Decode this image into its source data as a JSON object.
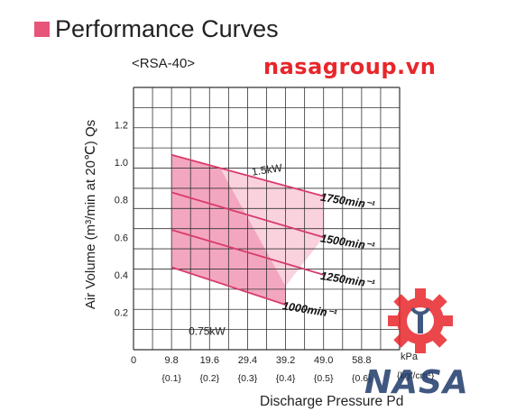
{
  "header": {
    "title": "Performance Curves"
  },
  "model": "<RSA-40>",
  "watermark": "nasagroup.vn",
  "logo_text": "NASA",
  "colors": {
    "accent": "#e8557a",
    "curve": "#d83c6a",
    "region_dark": "#f3a6bf",
    "region_light": "#f9d2de",
    "watermark": "#e8262b",
    "logo": "#1f3a6b",
    "gear": "#e8262b"
  },
  "chart_data": {
    "type": "line",
    "title": "",
    "xlabel": "Discharge Pressure Pd",
    "ylabel": "Air Volume (m³/min at 20℃) Qs",
    "x_unit": "kPa",
    "x_sub_unit": "{kgf/cm²}",
    "xlim": [
      0,
      68.6
    ],
    "ylim": [
      0,
      1.4
    ],
    "grid": true,
    "x_ticks": [
      "0",
      "9.8",
      "19.6",
      "29.4",
      "39.2",
      "49.0",
      "58.8"
    ],
    "x_tick_values": [
      0,
      9.8,
      19.6,
      29.4,
      39.2,
      49.0,
      58.8
    ],
    "x_sub_ticks": [
      "{0.1}",
      "{0.2}",
      "{0.3}",
      "{0.4}",
      "{0.5}",
      "{0.6}"
    ],
    "x_sub_tick_values": [
      9.8,
      19.6,
      29.4,
      39.2,
      49.0,
      58.8
    ],
    "y_ticks": [
      "0.2",
      "0.4",
      "0.6",
      "0.8",
      "1.0",
      "1.2"
    ],
    "y_tick_values": [
      0.2,
      0.4,
      0.6,
      0.8,
      1.0,
      1.2
    ],
    "series": [
      {
        "name": "1750min⁻¹",
        "x": [
          9.8,
          49.0
        ],
        "y": [
          1.04,
          0.82
        ]
      },
      {
        "name": "1500min⁻¹",
        "x": [
          9.8,
          49.0
        ],
        "y": [
          0.84,
          0.6
        ]
      },
      {
        "name": "1250min⁻¹",
        "x": [
          9.8,
          49.0
        ],
        "y": [
          0.64,
          0.4
        ]
      },
      {
        "name": "1000min⁻¹",
        "x": [
          9.8,
          39.2
        ],
        "y": [
          0.44,
          0.24
        ]
      }
    ],
    "regions": [
      {
        "name": "0.75kW",
        "polygon": [
          [
            9.8,
            1.04
          ],
          [
            22.5,
            0.965
          ],
          [
            39.2,
            0.34
          ],
          [
            39.2,
            0.24
          ],
          [
            9.8,
            0.44
          ]
        ]
      },
      {
        "name": "1.5kW",
        "polygon": [
          [
            22.5,
            0.965
          ],
          [
            49.0,
            0.82
          ],
          [
            49.0,
            0.6
          ],
          [
            39.2,
            0.34
          ]
        ]
      }
    ],
    "annotations": [
      "0.75kW",
      "1.5kW"
    ]
  }
}
